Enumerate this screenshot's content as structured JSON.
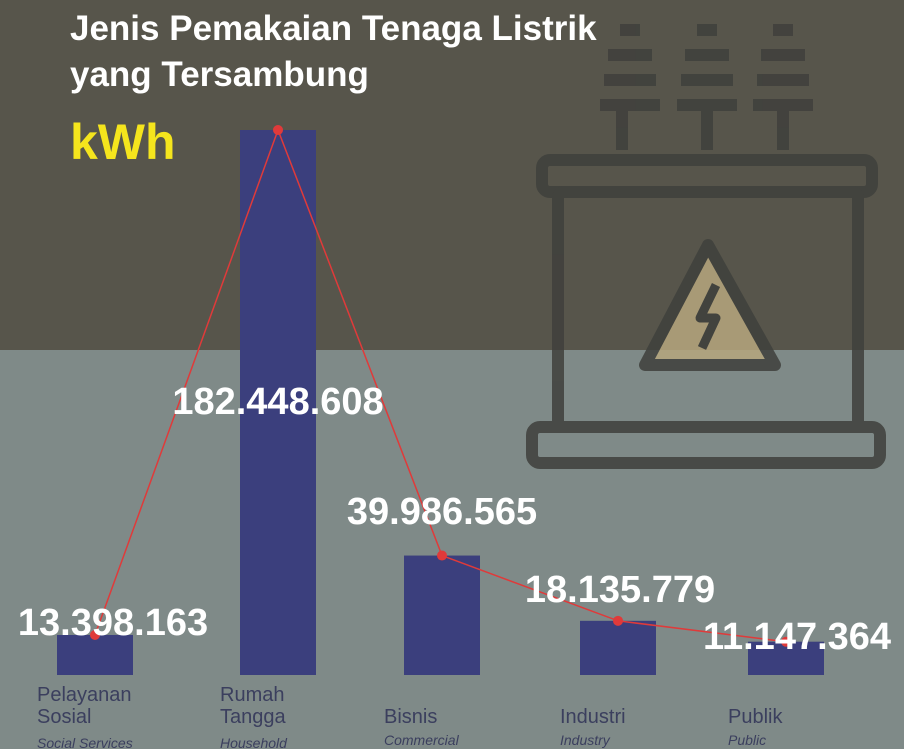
{
  "chart_data": {
    "type": "bar",
    "title": "Jenis Pemakaian Tenaga Listrik yang Tersambung",
    "subtitle": "kWh",
    "categories": [
      "Pelayanan Sosial",
      "Rumah Tangga",
      "Bisnis",
      "Industri",
      "Publik"
    ],
    "categories_en": [
      "Social Services",
      "Household",
      "Commercial",
      "Industry",
      "Public"
    ],
    "values": [
      13398163,
      182448608,
      39986565,
      18135779,
      11147364
    ],
    "value_labels": [
      "13.398.163",
      "182.448.608",
      "39.986.565",
      "18.135.779",
      "11.147.364"
    ],
    "color": "#3b3f7d",
    "line_color": "#e03a3a"
  }
}
